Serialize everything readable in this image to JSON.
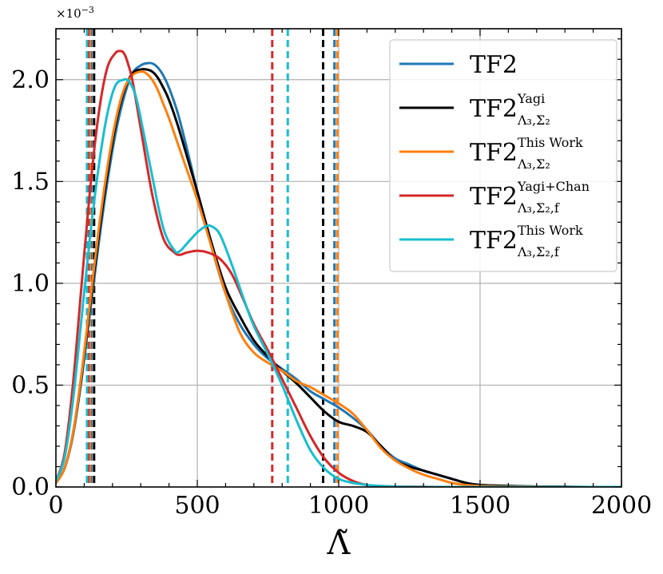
{
  "chart_data": {
    "type": "line",
    "xlabel": "Λ̃",
    "ylabel": "",
    "xlim": [
      0,
      2000
    ],
    "ylim": [
      0,
      2.25
    ],
    "y_multiplier": "×10",
    "y_multiplier_exp": "−3",
    "grid": true,
    "legend_position": "top-right",
    "x_ticks": [
      0,
      500,
      1000,
      1500,
      2000
    ],
    "x_tick_labels": [
      "0",
      "500",
      "1000",
      "1500",
      "2000"
    ],
    "y_ticks": [
      0,
      0.5,
      1.0,
      1.5,
      2.0
    ],
    "y_tick_labels": [
      "0.0",
      "0.5",
      "1.0",
      "1.5",
      "2.0"
    ],
    "series": [
      {
        "name": "TF2",
        "legend_main": "TF2",
        "legend_sup": "",
        "legend_sub": "",
        "color": "#1f77b4",
        "x": [
          0,
          30,
          60,
          90,
          120,
          150,
          180,
          210,
          240,
          270,
          300,
          320,
          340,
          360,
          380,
          400,
          430,
          460,
          500,
          550,
          600,
          650,
          700,
          750,
          800,
          850,
          900,
          950,
          1000,
          1050,
          1100,
          1150,
          1200,
          1250,
          1300,
          1350,
          1400,
          1450,
          1500,
          1600,
          1700,
          1800,
          1900,
          2000
        ],
        "y": [
          0.02,
          0.09,
          0.25,
          0.52,
          0.85,
          1.18,
          1.48,
          1.73,
          1.91,
          2.03,
          2.07,
          2.08,
          2.08,
          2.06,
          2.02,
          1.96,
          1.84,
          1.68,
          1.45,
          1.18,
          0.95,
          0.8,
          0.7,
          0.63,
          0.58,
          0.53,
          0.47,
          0.43,
          0.39,
          0.34,
          0.28,
          0.2,
          0.14,
          0.11,
          0.08,
          0.06,
          0.04,
          0.02,
          0.01,
          0.005,
          0.002,
          0.001,
          0.0,
          0.0
        ],
        "lower": 125,
        "upper": 985
      },
      {
        "name": "TF2_Yagi",
        "legend_main": "TF2",
        "legend_sup": "Yagi",
        "legend_sub": "Λ₃,Σ₂",
        "color": "#000000",
        "x": [
          0,
          30,
          60,
          90,
          120,
          150,
          180,
          210,
          240,
          270,
          300,
          320,
          340,
          360,
          380,
          400,
          430,
          460,
          500,
          550,
          600,
          650,
          700,
          750,
          800,
          850,
          900,
          950,
          1000,
          1050,
          1100,
          1150,
          1200,
          1250,
          1300,
          1350,
          1400,
          1450,
          1500,
          1600,
          1700,
          1800,
          1900,
          2000
        ],
        "y": [
          0.02,
          0.09,
          0.26,
          0.54,
          0.88,
          1.22,
          1.52,
          1.77,
          1.94,
          2.03,
          2.05,
          2.05,
          2.04,
          2.01,
          1.96,
          1.9,
          1.78,
          1.64,
          1.45,
          1.2,
          0.98,
          0.84,
          0.72,
          0.64,
          0.57,
          0.51,
          0.44,
          0.37,
          0.32,
          0.3,
          0.27,
          0.2,
          0.13,
          0.1,
          0.08,
          0.06,
          0.04,
          0.02,
          0.01,
          0.005,
          0.002,
          0.001,
          0.0,
          0.0
        ],
        "lower": 135,
        "upper": 945
      },
      {
        "name": "TF2_This_Work",
        "legend_main": "TF2",
        "legend_sup": "This Work",
        "legend_sub": "Λ₃,Σ₂",
        "color": "#ff7f0e",
        "x": [
          0,
          30,
          60,
          90,
          120,
          150,
          180,
          210,
          240,
          270,
          300,
          320,
          340,
          360,
          380,
          400,
          430,
          460,
          500,
          550,
          600,
          650,
          700,
          750,
          800,
          850,
          900,
          950,
          1000,
          1050,
          1100,
          1150,
          1200,
          1250,
          1300,
          1350,
          1400,
          1450,
          1500,
          1600,
          1700,
          1800,
          1900,
          2000
        ],
        "y": [
          0.02,
          0.09,
          0.26,
          0.55,
          0.9,
          1.25,
          1.55,
          1.79,
          1.95,
          2.02,
          2.04,
          2.03,
          2.0,
          1.95,
          1.88,
          1.81,
          1.69,
          1.57,
          1.41,
          1.18,
          0.95,
          0.76,
          0.66,
          0.61,
          0.57,
          0.52,
          0.49,
          0.45,
          0.41,
          0.36,
          0.28,
          0.19,
          0.13,
          0.09,
          0.06,
          0.04,
          0.02,
          0.01,
          0.005,
          0.002,
          0.001,
          0.0,
          0.0,
          0.0
        ],
        "lower": 120,
        "upper": 995
      },
      {
        "name": "TF2_Yagi_Chan",
        "legend_main": "TF2",
        "legend_sup": "Yagi+Chan",
        "legend_sub": "Λ₃,Σ₂,f",
        "color": "#d62728",
        "x": [
          0,
          30,
          60,
          90,
          120,
          150,
          180,
          210,
          230,
          240,
          250,
          270,
          300,
          340,
          380,
          420,
          440,
          460,
          500,
          540,
          580,
          620,
          660,
          700,
          750,
          800,
          850,
          900,
          950,
          1000,
          1050,
          1100,
          1150,
          1200,
          1300,
          1400,
          1500,
          1700,
          2000
        ],
        "y": [
          0.03,
          0.16,
          0.5,
          0.98,
          1.45,
          1.82,
          2.05,
          2.13,
          2.14,
          2.13,
          2.1,
          2.0,
          1.76,
          1.44,
          1.22,
          1.15,
          1.14,
          1.15,
          1.16,
          1.15,
          1.12,
          1.05,
          0.93,
          0.8,
          0.67,
          0.53,
          0.39,
          0.25,
          0.14,
          0.07,
          0.03,
          0.01,
          0.005,
          0.002,
          0.001,
          0.0,
          0.0,
          0.0,
          0.0
        ],
        "lower": 115,
        "upper": 765
      },
      {
        "name": "TF2_This_Work_f",
        "legend_main": "TF2",
        "legend_sup": "This Work",
        "legend_sub": "Λ₃,Σ₂,f",
        "color": "#17becf",
        "x": [
          0,
          30,
          60,
          90,
          120,
          150,
          180,
          210,
          240,
          250,
          260,
          280,
          300,
          340,
          380,
          420,
          440,
          460,
          500,
          530,
          550,
          580,
          620,
          660,
          700,
          750,
          800,
          850,
          900,
          950,
          1000,
          1050,
          1100,
          1150,
          1200,
          1300,
          1500,
          2000
        ],
        "y": [
          0.03,
          0.14,
          0.42,
          0.82,
          1.22,
          1.56,
          1.82,
          1.97,
          2.0,
          2.0,
          1.99,
          1.93,
          1.81,
          1.53,
          1.27,
          1.16,
          1.16,
          1.19,
          1.25,
          1.28,
          1.28,
          1.24,
          1.1,
          0.94,
          0.79,
          0.65,
          0.5,
          0.33,
          0.18,
          0.09,
          0.04,
          0.02,
          0.01,
          0.005,
          0.002,
          0.0,
          0.0,
          0.0
        ],
        "lower": 110,
        "upper": 820
      }
    ]
  }
}
